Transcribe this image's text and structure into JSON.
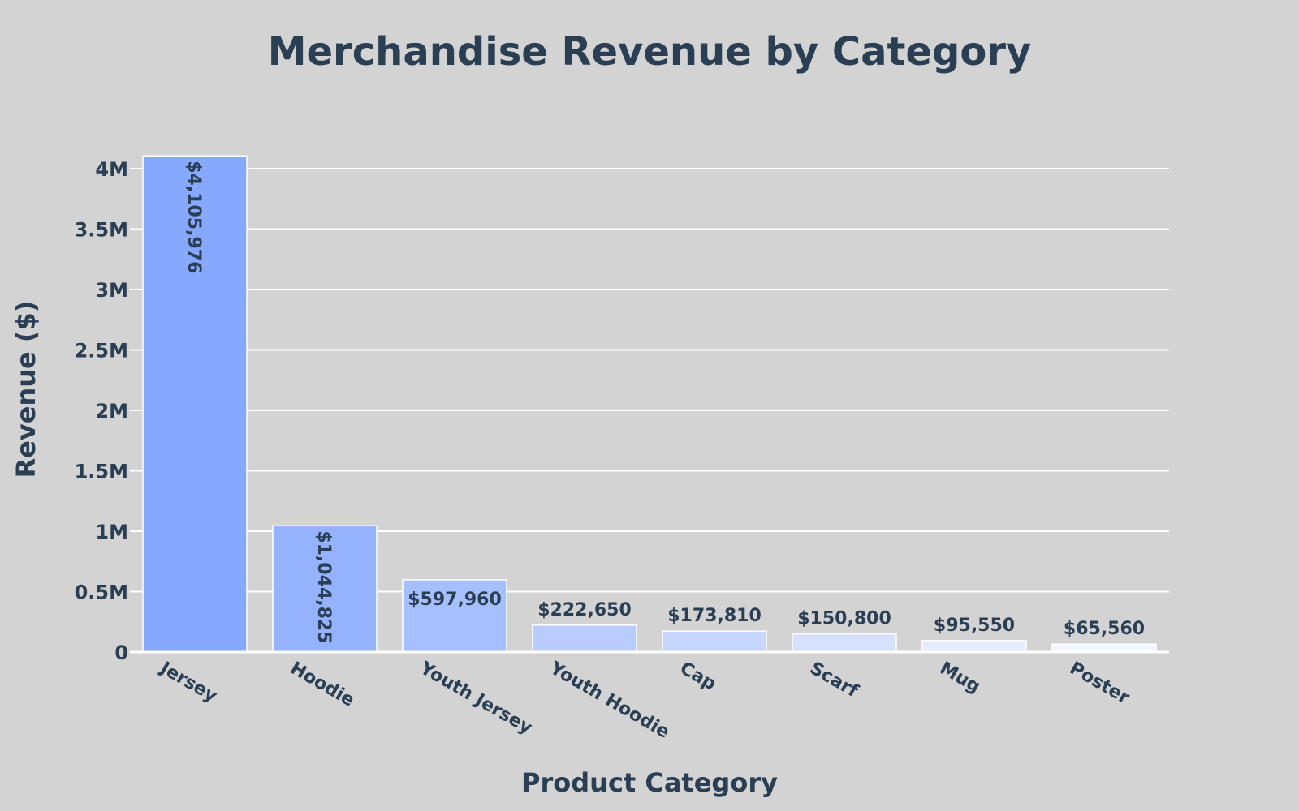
{
  "colors": {
    "background": "#d3d3d3",
    "text": "#2a3f54",
    "grid": "#ffffff",
    "bar_stroke": "#ffffff",
    "bar_fills": [
      "#86a8ff",
      "#95b2ff",
      "#a6bfff",
      "#b8ccff",
      "#c6d6ff",
      "#d5e1ff",
      "#e4ebff",
      "#f2f5ff"
    ]
  },
  "chart_data": {
    "type": "bar",
    "title": "Merchandise Revenue by Category",
    "xlabel": "Product Category",
    "ylabel": "Revenue ($)",
    "categories": [
      "Jersey",
      "Hoodie",
      "Youth Jersey",
      "Youth Hoodie",
      "Cap",
      "Scarf",
      "Mug",
      "Poster"
    ],
    "values": [
      4105976,
      1044825,
      597960,
      222650,
      173810,
      150800,
      95550,
      65560
    ],
    "data_labels": [
      "$4,105,976",
      "$1,044,825",
      "$597,960",
      "$222,650",
      "$173,810",
      "$150,800",
      "$95,550",
      "$65,560"
    ],
    "ylim": [
      0,
      4000000
    ],
    "yticks": [
      0,
      500000,
      1000000,
      1500000,
      2000000,
      2500000,
      3000000,
      3500000,
      4000000
    ],
    "ytick_labels": [
      "0",
      "0.5M",
      "1M",
      "1.5M",
      "2M",
      "2.5M",
      "3M",
      "3.5M",
      "4M"
    ],
    "grid": true,
    "legend": "none"
  }
}
